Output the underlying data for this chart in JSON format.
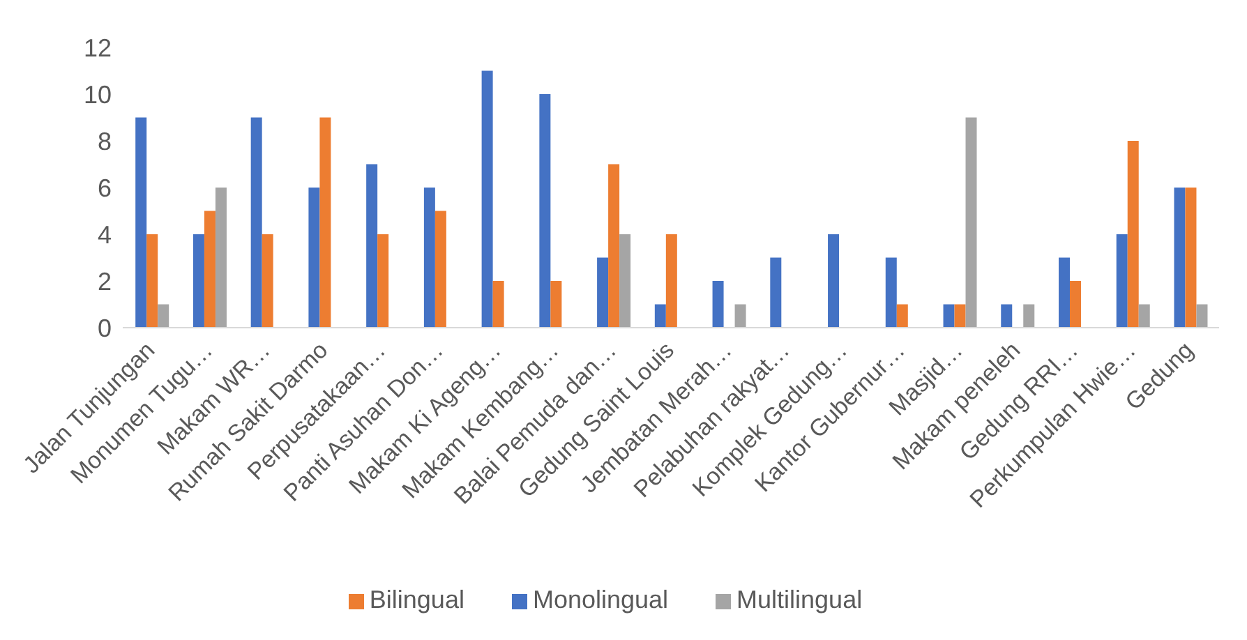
{
  "chart_data": {
    "type": "bar",
    "categories": [
      "Jalan Tunjungan",
      "Monumen Tugu…",
      "Makam WR…",
      "Rumah Sakit Darmo",
      "Perpusatakaan…",
      "Panti Asuhan Don…",
      "Makam Ki Ageng…",
      "Makam Kembang…",
      "Balai Pemuda dan…",
      "Gedung Saint Louis",
      "Jembatan Merah…",
      "Pelabuhan rakyat…",
      "Komplek Gedung…",
      "Kantor Gubernur…",
      "Masjid…",
      "Makam peneleh",
      "Gedung RRI…",
      "Perkumpulan Hwie…",
      "Gedung"
    ],
    "series": [
      {
        "name": "Monolingual",
        "color": "#4472c4",
        "values": [
          9,
          4,
          9,
          6,
          7,
          6,
          11,
          10,
          3,
          1,
          2,
          3,
          4,
          3,
          1,
          1,
          3,
          4,
          6
        ]
      },
      {
        "name": "Bilingual",
        "color": "#ed7d31",
        "values": [
          4,
          5,
          4,
          9,
          4,
          5,
          2,
          2,
          7,
          4,
          0,
          0,
          0,
          1,
          1,
          0,
          2,
          8,
          6
        ]
      },
      {
        "name": "Multilingual",
        "color": "#a5a5a5",
        "values": [
          1,
          6,
          0,
          0,
          0,
          0,
          0,
          0,
          4,
          0,
          1,
          0,
          0,
          0,
          9,
          1,
          0,
          1,
          1
        ]
      }
    ],
    "ylim": [
      0,
      12
    ],
    "yticks": [
      0,
      2,
      4,
      6,
      8,
      10,
      12
    ],
    "grid": false,
    "legend": "bottom"
  }
}
